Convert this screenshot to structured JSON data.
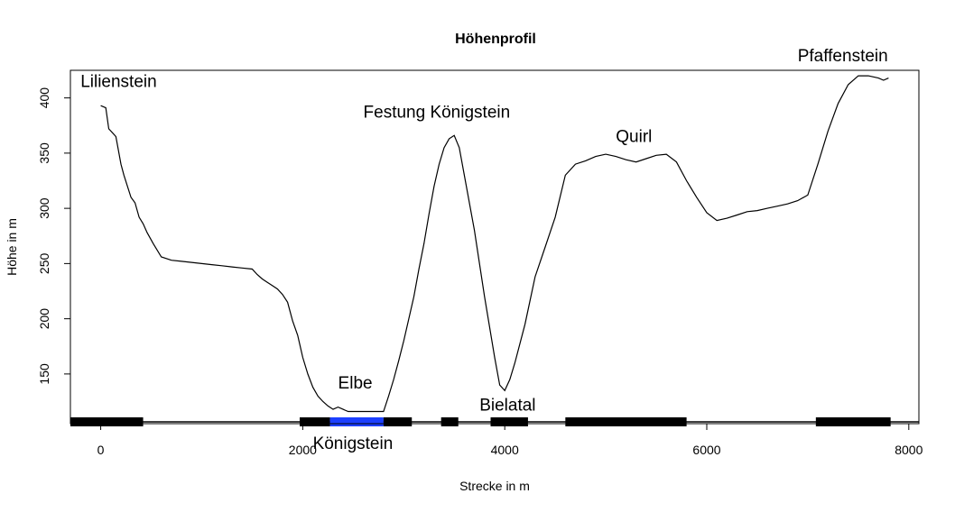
{
  "chart_data": {
    "type": "line",
    "title": "Höhenprofil",
    "xlabel": "Strecke in m",
    "ylabel": "Höhe in m",
    "xlim": [
      -300,
      8100
    ],
    "ylim": [
      105,
      425
    ],
    "xticks": [
      0,
      2000,
      4000,
      6000,
      8000
    ],
    "yticks": [
      150,
      200,
      250,
      300,
      350,
      400
    ],
    "grid": false,
    "series": [
      {
        "x": [
          0,
          50,
          80,
          150,
          200,
          230,
          300,
          340,
          380,
          420,
          460,
          520,
          600,
          700,
          800,
          900,
          1000,
          1100,
          1200,
          1300,
          1400,
          1500,
          1550,
          1600,
          1650,
          1700,
          1750,
          1800,
          1850,
          1900,
          1950,
          2000,
          2050,
          2100,
          2150,
          2200,
          2250,
          2300,
          2350,
          2400,
          2450,
          2500,
          2600,
          2700,
          2800,
          2850,
          2900,
          2950,
          3000,
          3050,
          3100,
          3150,
          3200,
          3250,
          3300,
          3350,
          3400,
          3450,
          3500,
          3550,
          3600,
          3700,
          3800,
          3900,
          3950,
          4000,
          4050,
          4100,
          4200,
          4300,
          4400,
          4500,
          4600,
          4700,
          4800,
          4900,
          5000,
          5100,
          5200,
          5300,
          5400,
          5500,
          5600,
          5700,
          5800,
          5900,
          6000,
          6100,
          6200,
          6300,
          6400,
          6500,
          6600,
          6700,
          6800,
          6900,
          7000,
          7100,
          7200,
          7300,
          7400,
          7500,
          7600,
          7700,
          7750,
          7800
        ],
        "values": [
          393,
          391,
          372,
          365,
          340,
          330,
          310,
          305,
          292,
          286,
          278,
          268,
          256,
          253,
          252,
          251,
          250,
          249,
          248,
          247,
          246,
          245,
          240,
          236,
          233,
          230,
          227,
          222,
          215,
          198,
          185,
          165,
          150,
          138,
          130,
          125,
          121,
          118,
          120,
          118,
          116,
          116,
          116,
          116,
          116,
          130,
          145,
          162,
          180,
          200,
          220,
          245,
          268,
          295,
          320,
          340,
          355,
          363,
          366,
          355,
          330,
          280,
          220,
          165,
          140,
          135,
          145,
          160,
          195,
          238,
          265,
          292,
          330,
          340,
          343,
          347,
          349,
          347,
          344,
          342,
          345,
          348,
          349,
          342,
          325,
          310,
          296,
          289,
          291,
          294,
          297,
          298,
          300,
          302,
          304,
          307,
          312,
          340,
          370,
          395,
          412,
          420,
          420,
          418,
          416,
          418
        ]
      }
    ],
    "segments": [
      {
        "from": -300,
        "to": 420,
        "color": "#000000"
      },
      {
        "from": 1970,
        "to": 2270,
        "color": "#000000"
      },
      {
        "from": 2270,
        "to": 2800,
        "color": "#1c3fff"
      },
      {
        "from": 2800,
        "to": 3080,
        "color": "#000000"
      },
      {
        "from": 3370,
        "to": 3540,
        "color": "#000000"
      },
      {
        "from": 3860,
        "to": 4230,
        "color": "#000000"
      },
      {
        "from": 4600,
        "to": 5800,
        "color": "#000000"
      },
      {
        "from": 7080,
        "to": 7820,
        "color": "#000000"
      }
    ],
    "annotations": [
      {
        "text": "Lilienstein",
        "x": -200,
        "y": 410,
        "color": "#000000"
      },
      {
        "text": "Festung Königstein",
        "x": 2600,
        "y": 382,
        "color": "#000000"
      },
      {
        "text": "Quirl",
        "x": 5100,
        "y": 360,
        "color": "#000000"
      },
      {
        "text": "Elbe",
        "x": 2350,
        "y": 137,
        "color": "#1c3fff"
      },
      {
        "text": "Bielatal",
        "x": 3750,
        "y": 117,
        "color": "#000000"
      },
      {
        "text": "Pfaffenstein",
        "x": 6900,
        "y": 433,
        "color": "#000000"
      },
      {
        "text": "Königstein",
        "x": 2100,
        "y": 82,
        "color": "#000000"
      }
    ]
  }
}
